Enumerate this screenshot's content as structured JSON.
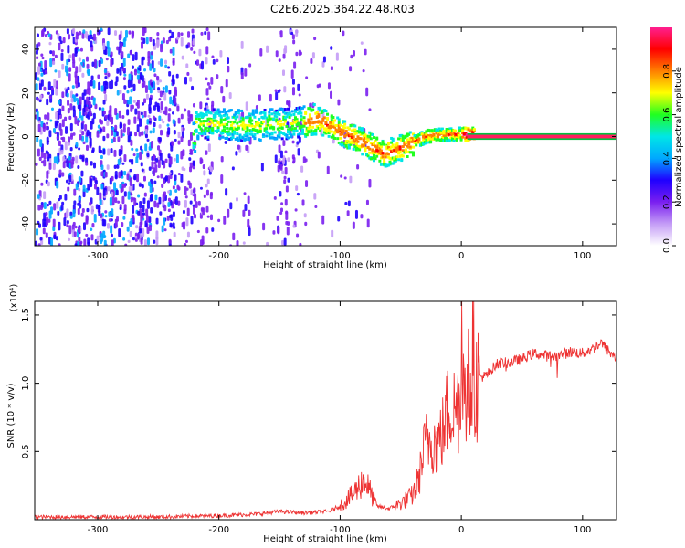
{
  "figure_title": "C2E6.2025.364.22.48.R03",
  "chart_data": [
    {
      "type": "heatmap",
      "title": "C2E6.2025.364.22.48.R03",
      "xlabel": "Height of straight line (km)",
      "ylabel": "Frequency (Hz)",
      "xlim": [
        -352,
        128
      ],
      "ylim": [
        -50,
        50
      ],
      "x_ticks": [
        -300,
        -200,
        -100,
        0,
        100
      ],
      "y_ticks": [
        -40,
        -20,
        0,
        20,
        40
      ],
      "x_tick_labels": [
        "-300",
        "-200",
        "-100",
        "0",
        "100"
      ],
      "y_tick_labels": [
        "-40",
        "-20",
        "0",
        "20",
        "40"
      ],
      "grid": false,
      "colorbar": {
        "label": "Normalized spectral amplitude",
        "range": [
          0,
          1
        ],
        "ticks": [
          0.0,
          0.2,
          0.4,
          0.6,
          0.8
        ],
        "tick_labels": [
          "0.0",
          "0.2",
          "0.4",
          "0.6",
          "0.8"
        ],
        "colormap": [
          "#ffffff",
          "#c49cf6",
          "#7a1ff0",
          "#1f00ff",
          "#00a8ff",
          "#00e6e6",
          "#20ff20",
          "#ffff00",
          "#ff8000",
          "#ff0000",
          "#ff1f8f"
        ]
      },
      "ridge": {
        "description_points": [
          {
            "x": -220,
            "y": 6
          },
          {
            "x": -180,
            "y": 5
          },
          {
            "x": -140,
            "y": 6
          },
          {
            "x": -120,
            "y": 8
          },
          {
            "x": -100,
            "y": 2
          },
          {
            "x": -80,
            "y": -3
          },
          {
            "x": -65,
            "y": -8
          },
          {
            "x": -50,
            "y": -5
          },
          {
            "x": -30,
            "y": 0
          },
          {
            "x": -10,
            "y": 1
          },
          {
            "x": 5,
            "y": 1
          },
          {
            "x": 128,
            "y": 0
          }
        ]
      }
    },
    {
      "type": "line",
      "xlabel": "Height of straight line (km)",
      "ylabel": "SNR (10 * v/v)",
      "y_multiplier_label": "(x10⁴)",
      "xlim": [
        -352,
        128
      ],
      "ylim": [
        0,
        1.6
      ],
      "x_ticks": [
        -300,
        -200,
        -100,
        0,
        100
      ],
      "y_ticks": [
        0.5,
        1.0,
        1.5
      ],
      "x_tick_labels": [
        "-300",
        "-200",
        "-100",
        "0",
        "100"
      ],
      "y_tick_labels": [
        "0.5",
        "1.0",
        "1.5"
      ],
      "grid": false,
      "line_color": "#ee3333",
      "series": [
        {
          "x": [
            -352,
            -300,
            -250,
            -200,
            -170,
            -150,
            -130,
            -110,
            -100,
            -90,
            -80,
            -75,
            -70,
            -60,
            -50,
            -40,
            -35,
            -30,
            -25,
            -20,
            -15,
            -10,
            -5,
            0,
            5,
            10,
            15,
            20,
            30,
            40,
            50,
            60,
            70,
            80,
            90,
            100,
            110,
            115,
            120,
            128
          ],
          "y": [
            0.02,
            0.02,
            0.02,
            0.03,
            0.04,
            0.06,
            0.05,
            0.06,
            0.1,
            0.18,
            0.3,
            0.2,
            0.1,
            0.08,
            0.12,
            0.18,
            0.3,
            0.55,
            0.6,
            0.55,
            0.65,
            0.85,
            0.8,
            0.9,
            1.0,
            0.95,
            1.05,
            1.05,
            1.15,
            1.15,
            1.18,
            1.22,
            1.2,
            1.2,
            1.23,
            1.22,
            1.26,
            1.3,
            1.25,
            1.18
          ]
        }
      ]
    }
  ]
}
